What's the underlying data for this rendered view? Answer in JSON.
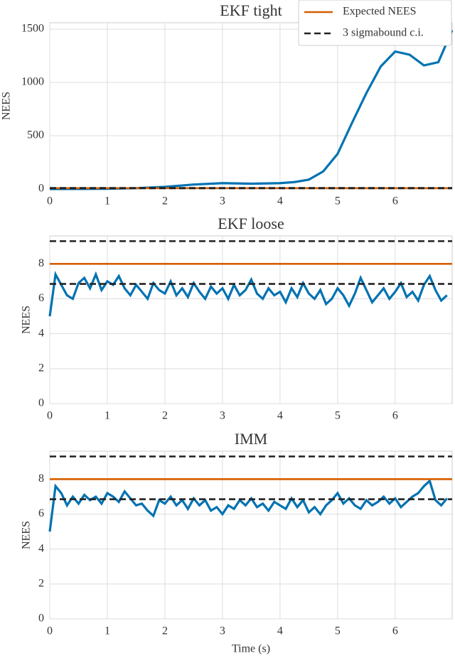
{
  "chart_data": [
    {
      "type": "line",
      "title": "EKF tight",
      "ylabel": "NEES",
      "legend": "upper right",
      "grid": true,
      "xlim": [
        0,
        6.99
      ],
      "ylim": [
        0,
        1560
      ],
      "xticks": [
        0,
        1,
        2,
        3,
        4,
        5,
        6
      ],
      "yticks": [
        0,
        500,
        1000,
        1500
      ],
      "x": [
        0,
        0.5,
        1,
        1.5,
        2,
        2.5,
        3,
        3.5,
        4,
        4.25,
        4.5,
        4.75,
        5,
        5.25,
        5.5,
        5.75,
        6,
        6.25,
        6.5,
        6.75,
        6.99
      ],
      "series": [
        {
          "color": "#0072b2",
          "values": [
            0,
            1,
            2,
            8,
            20,
            42,
            55,
            50,
            55,
            65,
            88,
            165,
            330,
            620,
            900,
            1150,
            1290,
            1260,
            1160,
            1190,
            1490
          ]
        },
        {
          "name": "Expected NEES",
          "color": "#d55e00",
          "x": [
            0,
            6.99
          ],
          "values": [
            8,
            8
          ]
        },
        {
          "name": "3 sigmabound c.i.",
          "color": "#222222",
          "dash": true,
          "x": [
            0,
            6.99
          ],
          "values": [
            9.3,
            9.3
          ]
        },
        {
          "color": "#222222",
          "dash": true,
          "x": [
            0,
            6.99
          ],
          "values": [
            6.85,
            6.85
          ]
        }
      ]
    },
    {
      "type": "line",
      "title": "EKF loose",
      "ylabel": "NEES",
      "grid": true,
      "xlim": [
        0,
        6.99
      ],
      "ylim": [
        0,
        9.6
      ],
      "xticks": [
        0,
        1,
        2,
        3,
        4,
        5,
        6
      ],
      "yticks": [
        0,
        2,
        4,
        6,
        8
      ],
      "x": [
        0,
        0.1,
        0.2,
        0.3,
        0.4,
        0.5,
        0.6,
        0.7,
        0.8,
        0.9,
        1,
        1.1,
        1.2,
        1.3,
        1.4,
        1.5,
        1.6,
        1.7,
        1.8,
        1.9,
        2,
        2.1,
        2.2,
        2.3,
        2.4,
        2.5,
        2.6,
        2.7,
        2.8,
        2.9,
        3,
        3.1,
        3.2,
        3.3,
        3.4,
        3.5,
        3.6,
        3.7,
        3.8,
        3.9,
        4,
        4.1,
        4.2,
        4.3,
        4.4,
        4.5,
        4.6,
        4.7,
        4.8,
        4.9,
        5,
        5.1,
        5.2,
        5.3,
        5.4,
        5.5,
        5.6,
        5.7,
        5.8,
        5.9,
        6,
        6.1,
        6.2,
        6.3,
        6.4,
        6.5,
        6.6,
        6.7,
        6.8,
        6.9
      ],
      "series": [
        {
          "color": "#0072b2",
          "values": [
            5.0,
            7.4,
            6.8,
            6.2,
            6.0,
            6.9,
            7.2,
            6.6,
            7.4,
            6.5,
            7.0,
            6.8,
            7.3,
            6.6,
            6.2,
            6.8,
            6.4,
            6.0,
            6.9,
            6.5,
            6.3,
            7.0,
            6.2,
            6.6,
            6.1,
            6.9,
            6.4,
            6.0,
            6.7,
            6.3,
            6.6,
            6.0,
            6.8,
            6.2,
            6.5,
            7.1,
            6.3,
            6.0,
            6.6,
            6.2,
            6.4,
            5.8,
            6.6,
            6.1,
            6.9,
            6.3,
            6.0,
            6.5,
            5.7,
            6.0,
            6.6,
            6.2,
            5.6,
            6.3,
            7.2,
            6.5,
            5.8,
            6.2,
            6.6,
            6.0,
            6.4,
            6.9,
            6.1,
            6.4,
            5.9,
            6.8,
            7.3,
            6.5,
            5.9,
            6.2
          ]
        },
        {
          "color": "#d55e00",
          "x": [
            0,
            6.99
          ],
          "values": [
            8,
            8
          ]
        },
        {
          "color": "#222222",
          "dash": true,
          "x": [
            0,
            6.99
          ],
          "values": [
            9.3,
            9.3
          ]
        },
        {
          "color": "#222222",
          "dash": true,
          "x": [
            0,
            6.99
          ],
          "values": [
            6.85,
            6.85
          ]
        }
      ]
    },
    {
      "type": "line",
      "title": "IMM",
      "ylabel": "NEES",
      "xlabel": "Time (s)",
      "grid": true,
      "xlim": [
        0,
        6.99
      ],
      "ylim": [
        0,
        9.6
      ],
      "xticks": [
        0,
        1,
        2,
        3,
        4,
        5,
        6
      ],
      "yticks": [
        0,
        2,
        4,
        6,
        8
      ],
      "x": [
        0,
        0.1,
        0.2,
        0.3,
        0.4,
        0.5,
        0.6,
        0.7,
        0.8,
        0.9,
        1,
        1.1,
        1.2,
        1.3,
        1.4,
        1.5,
        1.6,
        1.7,
        1.8,
        1.9,
        2,
        2.1,
        2.2,
        2.3,
        2.4,
        2.5,
        2.6,
        2.7,
        2.8,
        2.9,
        3,
        3.1,
        3.2,
        3.3,
        3.4,
        3.5,
        3.6,
        3.7,
        3.8,
        3.9,
        4,
        4.1,
        4.2,
        4.3,
        4.4,
        4.5,
        4.6,
        4.7,
        4.8,
        4.9,
        5,
        5.1,
        5.2,
        5.3,
        5.4,
        5.5,
        5.6,
        5.7,
        5.8,
        5.9,
        6,
        6.1,
        6.2,
        6.3,
        6.4,
        6.5,
        6.6,
        6.7,
        6.8,
        6.9
      ],
      "series": [
        {
          "color": "#0072b2",
          "values": [
            5.0,
            7.6,
            7.2,
            6.5,
            7.0,
            6.6,
            7.1,
            6.8,
            7.0,
            6.6,
            7.2,
            7.0,
            6.7,
            7.3,
            6.9,
            6.5,
            6.6,
            6.2,
            5.9,
            6.8,
            6.6,
            7.0,
            6.5,
            6.8,
            6.3,
            6.9,
            6.5,
            6.8,
            6.2,
            6.4,
            6.0,
            6.5,
            6.3,
            6.8,
            6.5,
            6.9,
            6.4,
            6.6,
            6.2,
            6.7,
            6.5,
            6.3,
            6.9,
            6.4,
            6.8,
            6.1,
            6.4,
            6.0,
            6.5,
            6.8,
            7.2,
            6.6,
            6.9,
            6.5,
            6.3,
            6.8,
            6.5,
            6.7,
            7.0,
            6.6,
            6.9,
            6.4,
            6.7,
            7.0,
            7.2,
            7.6,
            7.9,
            6.8,
            6.5,
            6.9
          ]
        },
        {
          "color": "#d55e00",
          "x": [
            0,
            6.99
          ],
          "values": [
            8,
            8
          ]
        },
        {
          "color": "#222222",
          "dash": true,
          "x": [
            0,
            6.99
          ],
          "values": [
            9.3,
            9.3
          ]
        },
        {
          "color": "#222222",
          "dash": true,
          "x": [
            0,
            6.99
          ],
          "values": [
            6.85,
            6.85
          ]
        }
      ]
    }
  ]
}
